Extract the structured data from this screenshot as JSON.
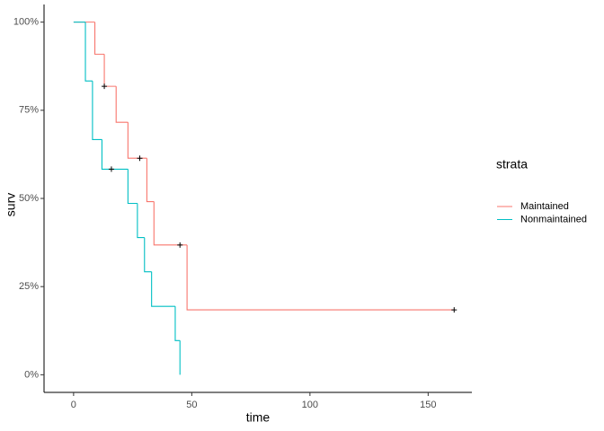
{
  "chart_data": {
    "type": "step",
    "x_label": "time",
    "y_label": "surv",
    "legend_title": "strata",
    "xlim": [
      -12.5,
      168.5
    ],
    "xticks": [
      0,
      50,
      100,
      150
    ],
    "ylim": [
      -5,
      105
    ],
    "yticks": [
      {
        "value": 0,
        "label": "0%"
      },
      {
        "value": 25,
        "label": "25%"
      },
      {
        "value": 50,
        "label": "50%"
      },
      {
        "value": 75,
        "label": "75%"
      },
      {
        "value": 100,
        "label": "100%"
      }
    ],
    "grid": false,
    "legend": "right",
    "series": [
      {
        "name": "Maintained",
        "color": "#F8766D",
        "x": [
          0,
          9,
          13,
          18,
          23,
          31,
          34,
          48,
          161
        ],
        "values": [
          100,
          90.9,
          81.8,
          71.6,
          61.4,
          49.1,
          36.8,
          18.4,
          18.4
        ],
        "censor_x": [
          13,
          28,
          45,
          161
        ],
        "censor_values": [
          81.8,
          61.4,
          36.8,
          18.4
        ]
      },
      {
        "name": "Nonmaintained",
        "color": "#00BFC4",
        "x": [
          0,
          5,
          8,
          12,
          23,
          27,
          30,
          33,
          43,
          45
        ],
        "values": [
          100,
          83.3,
          66.7,
          58.3,
          48.6,
          38.9,
          29.2,
          19.4,
          9.7,
          0
        ],
        "censor_x": [
          16
        ],
        "censor_values": [
          58.3
        ]
      }
    ]
  }
}
